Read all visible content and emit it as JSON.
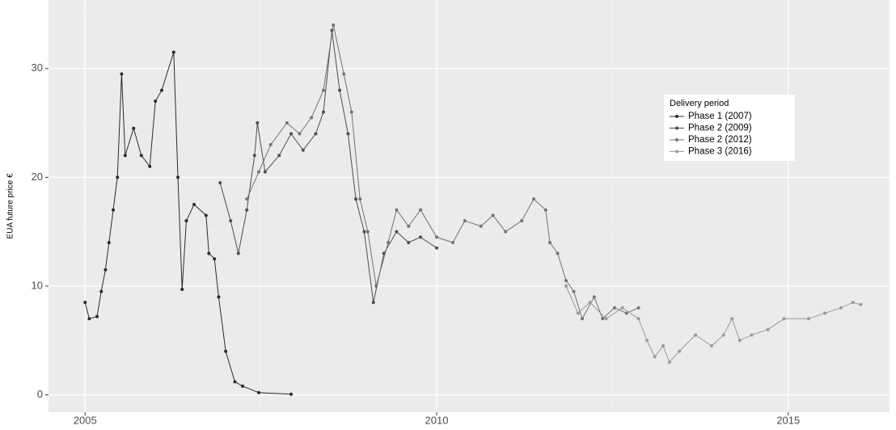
{
  "chart_data": {
    "type": "line",
    "y_label": "EUA future price €",
    "legend_title": "Delivery period",
    "xlim": [
      2004.48,
      2016.44
    ],
    "xticks": [
      2005,
      2010,
      2015
    ],
    "ylim": [
      -1.6,
      36.3
    ],
    "yticks": [
      0,
      10,
      20,
      30
    ],
    "grid": true,
    "series": [
      {
        "name": "Phase 1 (2007)",
        "color": "#2b2b2b",
        "x": [
          2005.0,
          2005.06,
          2005.17,
          2005.23,
          2005.29,
          2005.34,
          2005.4,
          2005.46,
          2005.52,
          2005.57,
          2005.69,
          2005.8,
          2005.92,
          2006.0,
          2006.09,
          2006.26,
          2006.32,
          2006.38,
          2006.44,
          2006.55,
          2006.72,
          2006.76,
          2006.84,
          2006.9,
          2007.0,
          2007.13,
          2007.24,
          2007.47,
          2007.93
        ],
        "values": [
          8.5,
          7,
          7.2,
          9.5,
          11.5,
          14,
          17,
          20,
          29.5,
          22,
          24.5,
          22,
          21,
          27,
          28,
          31.5,
          20,
          9.7,
          16,
          17.5,
          16.5,
          13,
          12.5,
          9,
          4,
          1.2,
          0.8,
          0.2,
          0.05
        ]
      },
      {
        "name": "Phase 2 (2009)",
        "color": "#4d4d4d",
        "x": [
          2006.92,
          2007.07,
          2007.18,
          2007.3,
          2007.41,
          2007.45,
          2007.56,
          2007.76,
          2007.93,
          2008.1,
          2008.28,
          2008.39,
          2008.51,
          2008.62,
          2008.74,
          2008.85,
          2008.97,
          2009.1,
          2009.25,
          2009.43,
          2009.6,
          2009.77,
          2010.0
        ],
        "values": [
          19.5,
          16,
          13,
          17,
          22,
          25,
          20.5,
          22,
          24,
          22.5,
          24,
          26,
          33.5,
          28,
          24,
          18,
          15,
          8.5,
          13,
          15,
          14,
          14.5,
          13.5
        ]
      },
      {
        "name": "Phase 2 (2012)",
        "color": "#737373",
        "x": [
          2007.3,
          2007.47,
          2007.64,
          2007.87,
          2008.05,
          2008.22,
          2008.39,
          2008.53,
          2008.68,
          2008.79,
          2008.91,
          2009.02,
          2009.14,
          2009.31,
          2009.43,
          2009.6,
          2009.77,
          2010.0,
          2010.23,
          2010.4,
          2010.63,
          2010.8,
          2010.98,
          2011.21,
          2011.38,
          2011.55,
          2011.61,
          2011.72,
          2011.84,
          2011.95,
          2012.07,
          2012.24,
          2012.36,
          2012.53,
          2012.7,
          2012.87
        ],
        "values": [
          18,
          20.5,
          23,
          25,
          24,
          25.5,
          28,
          34,
          29.5,
          26,
          18,
          15,
          10,
          14,
          17,
          15.5,
          17,
          14.5,
          14,
          16,
          15.5,
          16.5,
          15,
          16,
          18,
          17,
          14,
          13,
          10.5,
          9.5,
          7,
          9,
          7,
          8,
          7.5,
          8
        ]
      },
      {
        "name": "Phase 3 (2016)",
        "color": "#9a9a9a",
        "x": [
          2011.84,
          2012.01,
          2012.18,
          2012.41,
          2012.64,
          2012.87,
          2012.99,
          2013.1,
          2013.22,
          2013.31,
          2013.45,
          2013.68,
          2013.91,
          2014.08,
          2014.2,
          2014.31,
          2014.48,
          2014.71,
          2014.94,
          2015.29,
          2015.52,
          2015.75,
          2015.92,
          2016.03
        ],
        "values": [
          10,
          7.5,
          8.5,
          7,
          8,
          7,
          5,
          3.5,
          4.5,
          3,
          4,
          5.5,
          4.5,
          5.5,
          7,
          5,
          5.5,
          6,
          7,
          7,
          7.5,
          8,
          8.5,
          8.3
        ]
      }
    ]
  }
}
